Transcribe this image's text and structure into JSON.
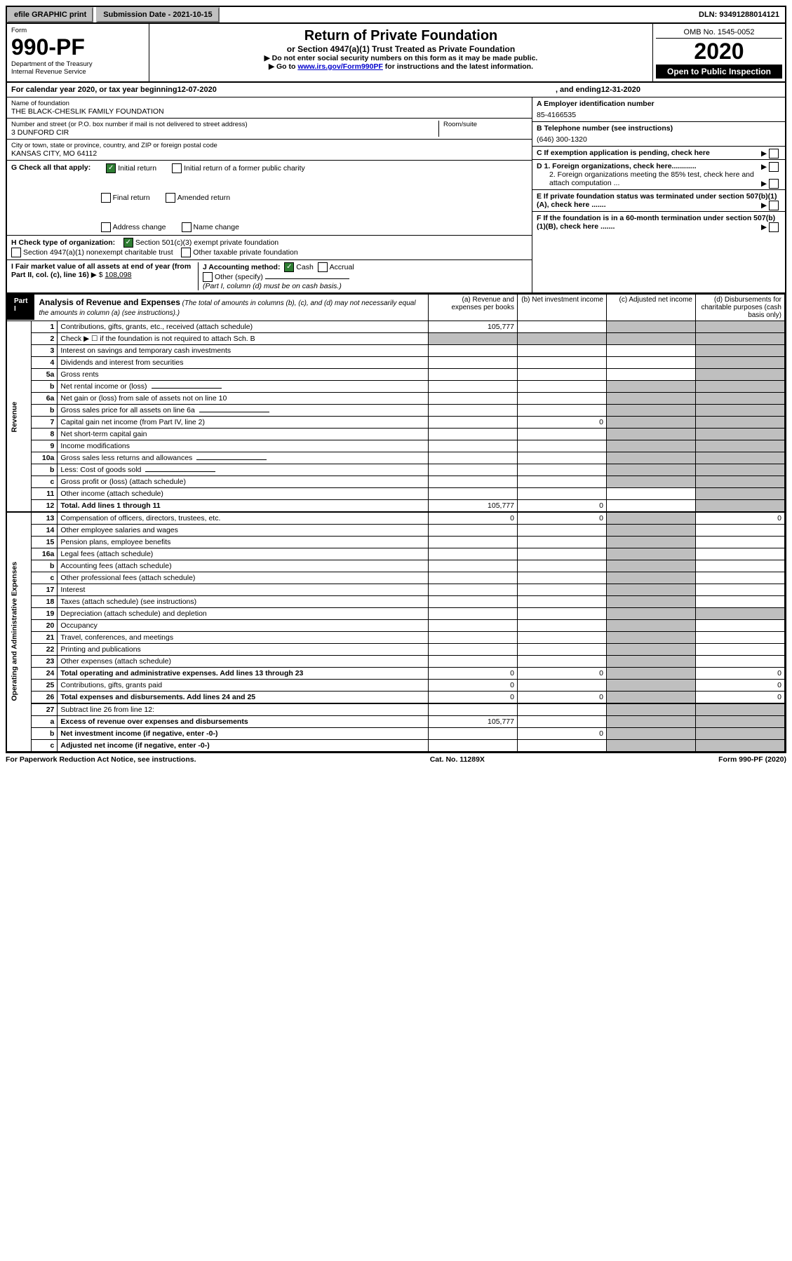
{
  "topbar": {
    "efile": "efile GRAPHIC print",
    "subdate": "Submission Date - 2021-10-15",
    "dln": "DLN: 93491288014121"
  },
  "header": {
    "form_label": "Form",
    "form_no": "990-PF",
    "dept": "Department of the Treasury",
    "irs": "Internal Revenue Service",
    "title": "Return of Private Foundation",
    "subtitle": "or Section 4947(a)(1) Trust Treated as Private Foundation",
    "instr1": "▶ Do not enter social security numbers on this form as it may be made public.",
    "instr2_pre": "▶ Go to ",
    "instr2_link": "www.irs.gov/Form990PF",
    "instr2_post": " for instructions and the latest information.",
    "omb": "OMB No. 1545-0052",
    "year": "2020",
    "open": "Open to Public Inspection"
  },
  "calyear": {
    "pre": "For calendar year 2020, or tax year beginning ",
    "beg": "12-07-2020",
    "mid": ", and ending ",
    "end": "12-31-2020"
  },
  "entity": {
    "name_lbl": "Name of foundation",
    "name": "THE BLACK-CHESLIK FAMILY FOUNDATION",
    "addr_lbl": "Number and street (or P.O. box number if mail is not delivered to street address)",
    "addr": "3 DUNFORD CIR",
    "room_lbl": "Room/suite",
    "city_lbl": "City or town, state or province, country, and ZIP or foreign postal code",
    "city": "KANSAS CITY, MO  64112",
    "a_lbl": "A Employer identification number",
    "a_val": "85-4166535",
    "b_lbl": "B Telephone number (see instructions)",
    "b_val": "(646) 300-1320",
    "c_lbl": "C If exemption application is pending, check here",
    "d1": "D 1. Foreign organizations, check here............",
    "d2": "2. Foreign organizations meeting the 85% test, check here and attach computation ...",
    "e": "E  If private foundation status was terminated under section 507(b)(1)(A), check here .......",
    "f": "F  If the foundation is in a 60-month termination under section 507(b)(1)(B), check here ......."
  },
  "g": {
    "label": "G Check all that apply:",
    "opts": [
      "Initial return",
      "Initial return of a former public charity",
      "Final return",
      "Amended return",
      "Address change",
      "Name change"
    ]
  },
  "h": {
    "label": "H Check type of organization:",
    "opts": [
      "Section 501(c)(3) exempt private foundation",
      "Section 4947(a)(1) nonexempt charitable trust",
      "Other taxable private foundation"
    ]
  },
  "i": {
    "label": "I Fair market value of all assets at end of year (from Part II, col. (c), line 16)",
    "val": "108,098"
  },
  "j": {
    "label": "J Accounting method:",
    "cash": "Cash",
    "accrual": "Accrual",
    "other": "Other (specify)",
    "note": "(Part I, column (d) must be on cash basis.)"
  },
  "part1": {
    "tag": "Part I",
    "title": "Analysis of Revenue and Expenses",
    "sub": " (The total of amounts in columns (b), (c), and (d) may not necessarily equal the amounts in column (a) (see instructions).)",
    "cols": {
      "a": "(a)  Revenue and expenses per books",
      "b": "(b)  Net investment income",
      "c": "(c)  Adjusted net income",
      "d": "(d)  Disbursements for charitable purposes (cash basis only)"
    }
  },
  "rows_rev": [
    {
      "n": "1",
      "d": "Contributions, gifts, grants, etc., received (attach schedule)",
      "a": "105,777",
      "shade_bcd": true,
      "shade_b": false,
      "shade_c": true,
      "shade_d": true
    },
    {
      "n": "2",
      "d": "Check ▶ ☐ if the foundation is not required to attach Sch. B",
      "allshade_val": true
    },
    {
      "n": "3",
      "d": "Interest on savings and temporary cash investments"
    },
    {
      "n": "4",
      "d": "Dividends and interest from securities"
    },
    {
      "n": "5a",
      "d": "Gross rents"
    },
    {
      "n": "b",
      "d": "Net rental income or (loss)",
      "sub_input": true
    },
    {
      "n": "6a",
      "d": "Net gain or (loss) from sale of assets not on line 10"
    },
    {
      "n": "b",
      "d": "Gross sales price for all assets on line 6a",
      "sub_input": true
    },
    {
      "n": "7",
      "d": "Capital gain net income (from Part IV, line 2)",
      "b": "0"
    },
    {
      "n": "8",
      "d": "Net short-term capital gain"
    },
    {
      "n": "9",
      "d": "Income modifications"
    },
    {
      "n": "10a",
      "d": "Gross sales less returns and allowances",
      "sub_input": true
    },
    {
      "n": "b",
      "d": "Less: Cost of goods sold",
      "sub_input": true
    },
    {
      "n": "c",
      "d": "Gross profit or (loss) (attach schedule)"
    },
    {
      "n": "11",
      "d": "Other income (attach schedule)"
    },
    {
      "n": "12",
      "d": "Total. Add lines 1 through 11",
      "bold": true,
      "a": "105,777",
      "b": "0",
      "thick": true
    }
  ],
  "rows_exp": [
    {
      "n": "13",
      "d": "Compensation of officers, directors, trustees, etc.",
      "a": "0",
      "b": "0",
      "d_": "0"
    },
    {
      "n": "14",
      "d": "Other employee salaries and wages"
    },
    {
      "n": "15",
      "d": "Pension plans, employee benefits"
    },
    {
      "n": "16a",
      "d": "Legal fees (attach schedule)"
    },
    {
      "n": "b",
      "d": "Accounting fees (attach schedule)"
    },
    {
      "n": "c",
      "d": "Other professional fees (attach schedule)"
    },
    {
      "n": "17",
      "d": "Interest"
    },
    {
      "n": "18",
      "d": "Taxes (attach schedule) (see instructions)"
    },
    {
      "n": "19",
      "d": "Depreciation (attach schedule) and depletion"
    },
    {
      "n": "20",
      "d": "Occupancy"
    },
    {
      "n": "21",
      "d": "Travel, conferences, and meetings"
    },
    {
      "n": "22",
      "d": "Printing and publications"
    },
    {
      "n": "23",
      "d": "Other expenses (attach schedule)"
    },
    {
      "n": "24",
      "d": "Total operating and administrative expenses. Add lines 13 through 23",
      "bold": true,
      "a": "0",
      "b": "0",
      "d_": "0"
    },
    {
      "n": "25",
      "d": "Contributions, gifts, grants paid",
      "a": "0",
      "d_": "0"
    },
    {
      "n": "26",
      "d": "Total expenses and disbursements. Add lines 24 and 25",
      "bold": true,
      "a": "0",
      "b": "0",
      "d_": "0",
      "thick": true
    },
    {
      "n": "27",
      "d": "Subtract line 26 from line 12:"
    },
    {
      "n": "a",
      "d": "Excess of revenue over expenses and disbursements",
      "bold": true,
      "a": "105,777"
    },
    {
      "n": "b",
      "d": "Net investment income (if negative, enter -0-)",
      "bold": true,
      "b": "0"
    },
    {
      "n": "c",
      "d": "Adjusted net income (if negative, enter -0-)",
      "bold": true
    }
  ],
  "side_labels": {
    "rev": "Revenue",
    "exp": "Operating and Administrative Expenses"
  },
  "footer": {
    "left": "For Paperwork Reduction Act Notice, see instructions.",
    "mid": "Cat. No. 11289X",
    "right": "Form 990-PF (2020)"
  }
}
